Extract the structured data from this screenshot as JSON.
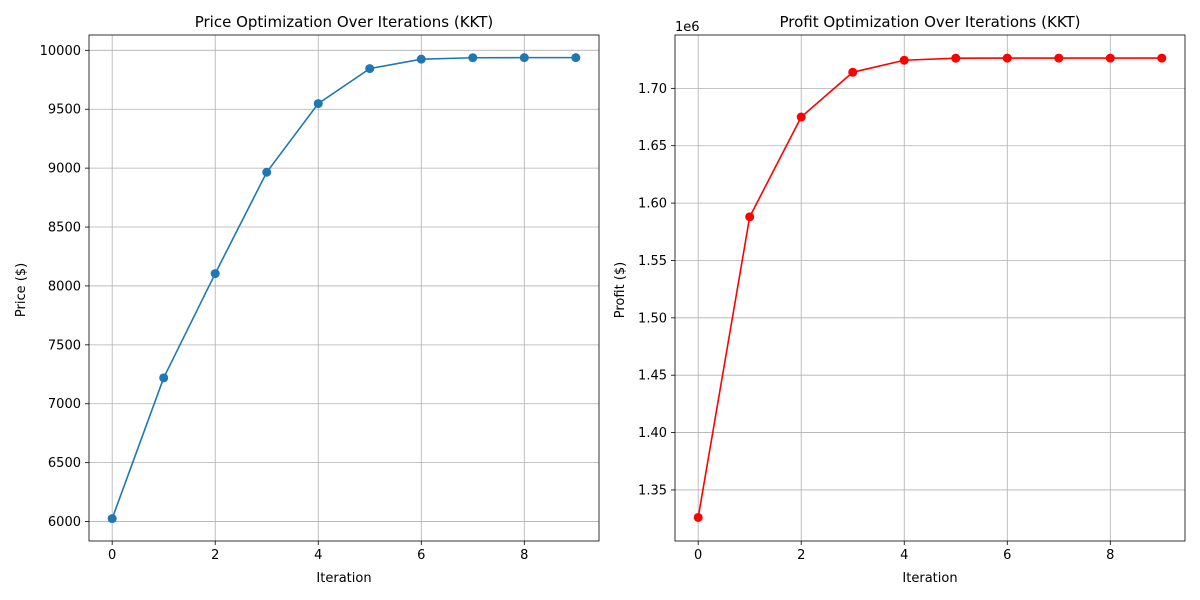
{
  "chart_data": [
    {
      "type": "line",
      "title": "Price Optimization Over Iterations (KKT)",
      "xlabel": "Iteration",
      "ylabel": "Price ($)",
      "xlim": [
        -0.45,
        9.45
      ],
      "ylim": [
        5835,
        10130
      ],
      "xticks": [
        0,
        2,
        4,
        6,
        8
      ],
      "yticks": [
        6000,
        6500,
        7000,
        7500,
        8000,
        8500,
        9000,
        9500,
        10000
      ],
      "ytick_labels": [
        "6000",
        "6500",
        "7000",
        "7500",
        "8000",
        "8500",
        "9000",
        "9500",
        "10000"
      ],
      "offset_text": "",
      "grid": true,
      "color": "#1f77b4",
      "marker": "circle",
      "series": [
        {
          "x": [
            0,
            1,
            2,
            3,
            4,
            5,
            6,
            7,
            8,
            9
          ],
          "y": [
            6025,
            7220,
            8105,
            8965,
            9548,
            9845,
            9925,
            9937,
            9938,
            9938
          ]
        }
      ]
    },
    {
      "type": "line",
      "title": "Profit Optimization Over Iterations (KKT)",
      "xlabel": "Iteration",
      "ylabel": "Profit ($)",
      "xlim": [
        -0.45,
        9.45
      ],
      "ylim": [
        1.3055,
        1.7465
      ],
      "xticks": [
        0,
        2,
        4,
        6,
        8
      ],
      "yticks": [
        1.35,
        1.4,
        1.45,
        1.5,
        1.55,
        1.6,
        1.65,
        1.7
      ],
      "ytick_labels": [
        "1.35",
        "1.40",
        "1.45",
        "1.50",
        "1.55",
        "1.60",
        "1.65",
        "1.70"
      ],
      "offset_text": "1e6",
      "grid": true,
      "color": "#ff0000",
      "marker": "circle",
      "series": [
        {
          "x": [
            0,
            1,
            2,
            3,
            4,
            5,
            6,
            7,
            8,
            9
          ],
          "y": [
            1.326,
            1.588,
            1.675,
            1.714,
            1.7245,
            1.7263,
            1.7264,
            1.7264,
            1.7264,
            1.7264
          ]
        }
      ]
    }
  ]
}
